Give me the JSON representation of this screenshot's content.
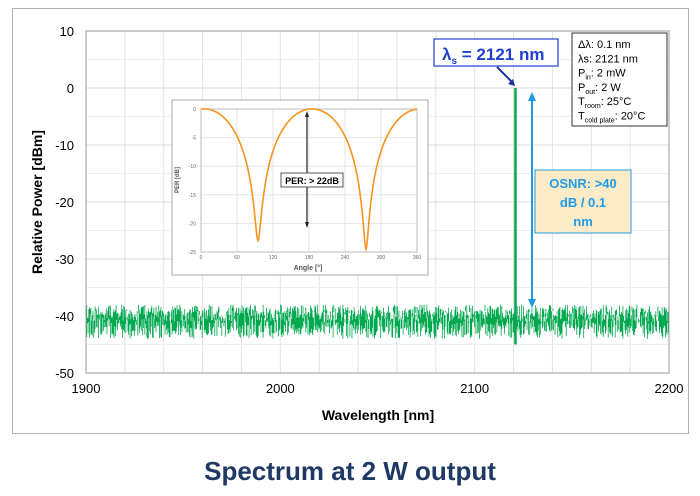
{
  "caption": "Spectrum at 2 W output",
  "chart_data": [
    {
      "type": "line",
      "xlabel": "Wavelength [nm]",
      "ylabel": "Relative Power [dBm]",
      "xlim": [
        1900,
        2200
      ],
      "ylim": [
        -50,
        10
      ],
      "xticks": [
        1900,
        2000,
        2100,
        2200
      ],
      "yticks": [
        10,
        0,
        -10,
        -20,
        -30,
        -40,
        -50
      ],
      "grid": true,
      "series_color": "#00a84f",
      "peak": {
        "x": 2121,
        "y": 0
      },
      "noise_floor_range": [
        -49,
        -38
      ],
      "annotations": {
        "peak_label_main": "λ",
        "peak_label_sub": "s",
        "peak_label_rest": " = 2121 nm",
        "osnr_lines": [
          "OSNR: >40",
          "dB / 0.1",
          "nm"
        ],
        "params": [
          {
            "main": "Δλ: 0.1 nm",
            "sub": "",
            "rest": ""
          },
          {
            "main": "λs: 2121 nm",
            "sub": "",
            "rest": ""
          },
          {
            "main": "P",
            "sub": "in",
            "rest": ": 2 mW"
          },
          {
            "main": "P",
            "sub": "out",
            "rest": ": 2 W"
          },
          {
            "main": "T",
            "sub": "room",
            "rest": ": 25°C"
          },
          {
            "main": "T",
            "sub": "cold plate",
            "rest": ": 20°C"
          }
        ]
      },
      "colors": {
        "peak_label": "#1f3fd0",
        "osnr": "#1e9be8",
        "osnr_bg": "#fdebc8"
      }
    },
    {
      "type": "line",
      "xlabel": "Angle [°]",
      "ylabel": "PER [dB]",
      "xlim": [
        0,
        360
      ],
      "ylim": [
        -25,
        0
      ],
      "xticks": [
        0,
        60,
        120,
        180,
        240,
        300,
        360
      ],
      "yticks": [
        0,
        -5,
        -10,
        -15,
        -20,
        -25
      ],
      "grid": true,
      "series_color": "#f7931e",
      "minima": [
        {
          "x": 95,
          "y": -23
        },
        {
          "x": 275,
          "y": -24.5
        }
      ],
      "maxima": [
        {
          "x": 5,
          "y": 0
        },
        {
          "x": 185,
          "y": 0
        },
        {
          "x": 360,
          "y": 0
        }
      ],
      "annotation": "PER: > 22dB"
    }
  ]
}
